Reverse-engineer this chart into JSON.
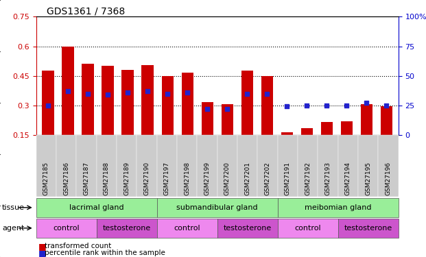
{
  "title": "GDS1361 / 7368",
  "samples": [
    "GSM27185",
    "GSM27186",
    "GSM27187",
    "GSM27188",
    "GSM27189",
    "GSM27190",
    "GSM27197",
    "GSM27198",
    "GSM27199",
    "GSM27200",
    "GSM27201",
    "GSM27202",
    "GSM27191",
    "GSM27192",
    "GSM27193",
    "GSM27194",
    "GSM27195",
    "GSM27196"
  ],
  "bar_values": [
    0.475,
    0.6,
    0.51,
    0.5,
    0.48,
    0.505,
    0.45,
    0.465,
    0.315,
    0.305,
    0.475,
    0.45,
    0.165,
    0.185,
    0.215,
    0.22,
    0.305,
    0.295
  ],
  "dot_values_pct": [
    25,
    37,
    35,
    34,
    36,
    37,
    35,
    36,
    22,
    22,
    35,
    35,
    24,
    25,
    25,
    25,
    27,
    25
  ],
  "ymin": 0.15,
  "ymax": 0.75,
  "yticks_left": [
    0.15,
    0.3,
    0.45,
    0.6,
    0.75
  ],
  "yticks_right": [
    0,
    25,
    50,
    75,
    100
  ],
  "bar_color": "#cc0000",
  "dot_color": "#2222cc",
  "tissue_color": "#99ee99",
  "tissue_border_color": "#44aa44",
  "agent_control_color": "#ee88ee",
  "agent_testosterone_color": "#cc55cc",
  "tissue_groups": [
    {
      "label": "lacrimal gland",
      "start": 0,
      "end": 6
    },
    {
      "label": "submandibular gland",
      "start": 6,
      "end": 12
    },
    {
      "label": "meibomian gland",
      "start": 12,
      "end": 18
    }
  ],
  "agent_groups": [
    {
      "label": "control",
      "start": 0,
      "end": 3,
      "type": "control"
    },
    {
      "label": "testosterone",
      "start": 3,
      "end": 6,
      "type": "testosterone"
    },
    {
      "label": "control",
      "start": 6,
      "end": 9,
      "type": "control"
    },
    {
      "label": "testosterone",
      "start": 9,
      "end": 12,
      "type": "testosterone"
    },
    {
      "label": "control",
      "start": 12,
      "end": 15,
      "type": "control"
    },
    {
      "label": "testosterone",
      "start": 15,
      "end": 18,
      "type": "testosterone"
    }
  ],
  "legend_red": "transformed count",
  "legend_blue": "percentile rank within the sample",
  "xtick_bg": "#cccccc"
}
